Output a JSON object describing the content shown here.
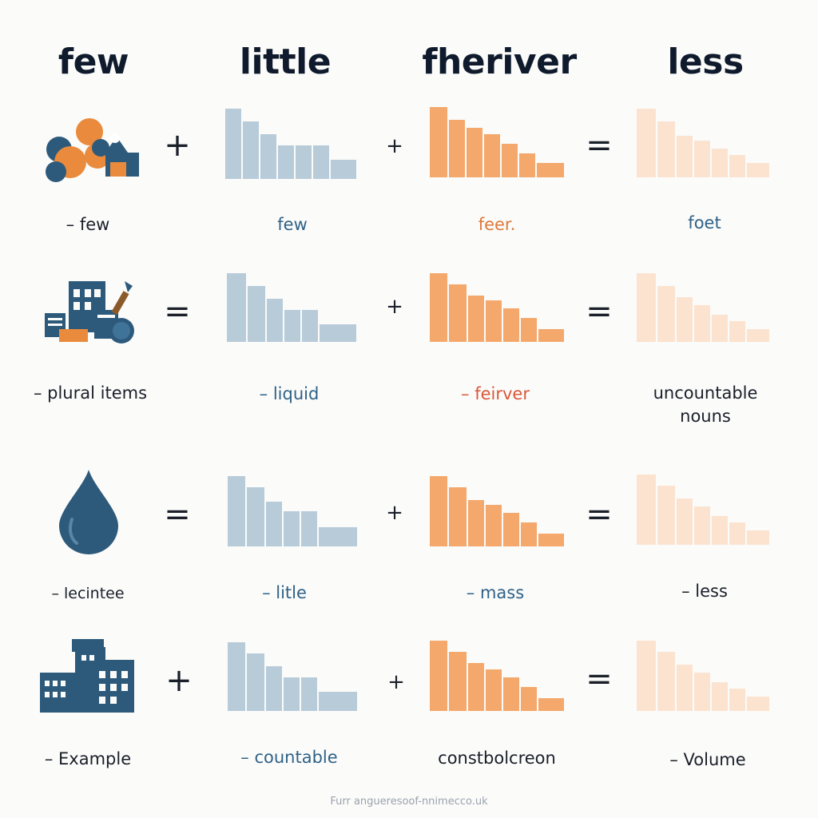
{
  "headers": [
    "few",
    "little",
    "fheriver",
    "less"
  ],
  "rows": [
    {
      "icon": "shapes-cluster-icon",
      "operators": [
        "+",
        "+",
        "="
      ],
      "labels": [
        "– few",
        "few",
        "feer.",
        "foet"
      ]
    },
    {
      "icon": "buildings-cluster-icon",
      "operators": [
        "=",
        "+",
        "="
      ],
      "labels": [
        "– plural items",
        "– liquid",
        "– feirver",
        "uncountable nouns"
      ]
    },
    {
      "icon": "water-drop-icon",
      "operators": [
        "=",
        "+",
        "="
      ],
      "labels": [
        "– lecintee",
        "– litle",
        "– mass",
        "– less"
      ]
    },
    {
      "icon": "city-buildings-icon",
      "operators": [
        "+",
        "+",
        "="
      ],
      "labels": [
        "– Example",
        "– countable",
        "constbolcreon",
        "– Volume"
      ]
    }
  ],
  "colors": {
    "blue_bars": "#b7cbd9",
    "orange_bars": "#f4a86c",
    "peach_bars": "#fbe3d0",
    "label_dark": "#1a1f29",
    "label_blue": "#2f6287",
    "label_orange": "#e07a3a",
    "label_red": "#d9583a",
    "icon_navy": "#2d5a7b",
    "icon_orange": "#ea8a3c"
  },
  "footer": "Furr angueresoof-nnimecco.uk"
}
